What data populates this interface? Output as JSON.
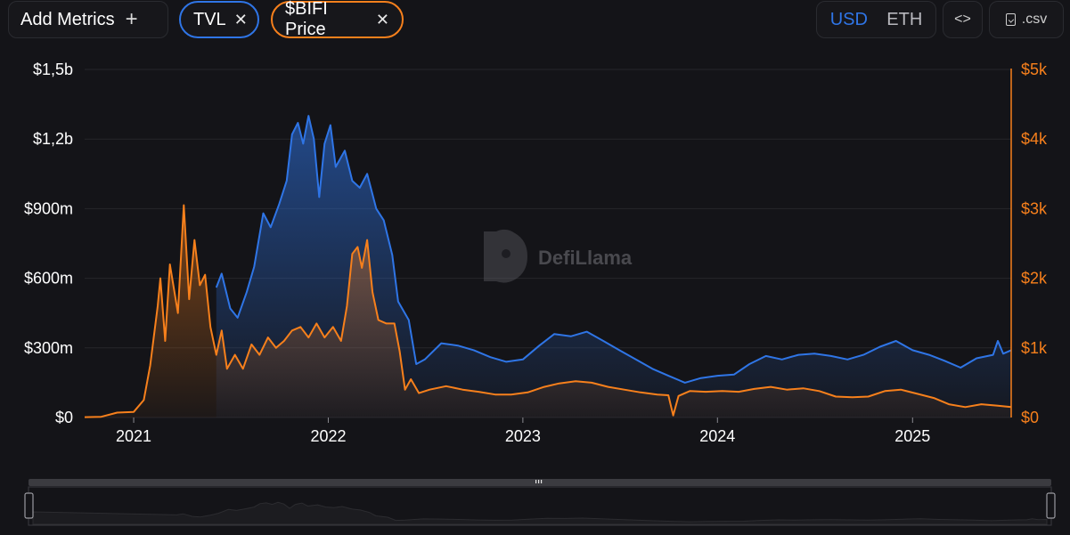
{
  "header": {
    "add_metrics_label": "Add Metrics",
    "add_icon": "plus-icon",
    "pills": [
      {
        "label": "TVL",
        "color": "#2f75e6",
        "close_icon": "close-icon"
      },
      {
        "label": "$BIFI Price",
        "color": "#f7801c",
        "close_icon": "close-icon"
      }
    ],
    "currency_options": [
      "USD",
      "ETH"
    ],
    "selected_currency": "USD",
    "embed_icon": "code-icon",
    "csv_label": ".csv",
    "csv_icon": "file-download-icon"
  },
  "watermark": {
    "text": "DefiLlama",
    "icon": "llama-logo-icon"
  },
  "chart_data": {
    "type": "line",
    "x_ticks": [
      "2021",
      "2022",
      "2023",
      "2024",
      "2025"
    ],
    "left_axis": {
      "ticks": [
        "$0",
        "$300m",
        "$600m",
        "$900m",
        "$1,2b",
        "$1,5b"
      ],
      "range": [
        0,
        1500000000
      ]
    },
    "right_axis": {
      "ticks": [
        "$0",
        "$1k",
        "$2k",
        "$3k",
        "$4k",
        "$5k"
      ],
      "range": [
        0,
        5000
      ]
    },
    "grid": true,
    "series": [
      {
        "name": "TVL",
        "axis": "left",
        "color": "#2f75e6",
        "area": true,
        "points": [
          [
            "2021-06-05",
            560000000
          ],
          [
            "2021-06-15",
            620000000
          ],
          [
            "2021-07-01",
            470000000
          ],
          [
            "2021-07-15",
            430000000
          ],
          [
            "2021-08-01",
            540000000
          ],
          [
            "2021-08-15",
            650000000
          ],
          [
            "2021-09-01",
            880000000
          ],
          [
            "2021-09-15",
            820000000
          ],
          [
            "2021-10-01",
            920000000
          ],
          [
            "2021-10-15",
            1020000000
          ],
          [
            "2021-10-25",
            1220000000
          ],
          [
            "2021-11-05",
            1270000000
          ],
          [
            "2021-11-15",
            1180000000
          ],
          [
            "2021-11-25",
            1300000000
          ],
          [
            "2021-12-05",
            1200000000
          ],
          [
            "2021-12-15",
            950000000
          ],
          [
            "2021-12-25",
            1180000000
          ],
          [
            "2022-01-05",
            1260000000
          ],
          [
            "2022-01-15",
            1080000000
          ],
          [
            "2022-02-01",
            1150000000
          ],
          [
            "2022-02-15",
            1020000000
          ],
          [
            "2022-03-01",
            990000000
          ],
          [
            "2022-03-15",
            1050000000
          ],
          [
            "2022-04-01",
            900000000
          ],
          [
            "2022-04-15",
            850000000
          ],
          [
            "2022-05-01",
            700000000
          ],
          [
            "2022-05-12",
            500000000
          ],
          [
            "2022-06-01",
            420000000
          ],
          [
            "2022-06-15",
            230000000
          ],
          [
            "2022-07-01",
            250000000
          ],
          [
            "2022-08-01",
            320000000
          ],
          [
            "2022-09-01",
            310000000
          ],
          [
            "2022-10-01",
            290000000
          ],
          [
            "2022-11-01",
            260000000
          ],
          [
            "2022-12-01",
            240000000
          ],
          [
            "2023-01-01",
            250000000
          ],
          [
            "2023-02-01",
            310000000
          ],
          [
            "2023-03-01",
            360000000
          ],
          [
            "2023-04-01",
            350000000
          ],
          [
            "2023-05-01",
            370000000
          ],
          [
            "2023-06-01",
            330000000
          ],
          [
            "2023-07-01",
            290000000
          ],
          [
            "2023-08-01",
            250000000
          ],
          [
            "2023-09-01",
            210000000
          ],
          [
            "2023-10-01",
            180000000
          ],
          [
            "2023-11-01",
            150000000
          ],
          [
            "2023-12-01",
            170000000
          ],
          [
            "2024-01-01",
            180000000
          ],
          [
            "2024-02-01",
            185000000
          ],
          [
            "2024-03-01",
            230000000
          ],
          [
            "2024-04-01",
            265000000
          ],
          [
            "2024-05-01",
            250000000
          ],
          [
            "2024-06-01",
            270000000
          ],
          [
            "2024-07-01",
            275000000
          ],
          [
            "2024-08-01",
            265000000
          ],
          [
            "2024-09-01",
            250000000
          ],
          [
            "2024-10-01",
            270000000
          ],
          [
            "2024-11-01",
            305000000
          ],
          [
            "2024-12-01",
            330000000
          ],
          [
            "2025-01-01",
            290000000
          ],
          [
            "2025-02-01",
            270000000
          ],
          [
            "2025-03-01",
            245000000
          ],
          [
            "2025-04-01",
            215000000
          ],
          [
            "2025-05-01",
            255000000
          ],
          [
            "2025-06-01",
            270000000
          ],
          [
            "2025-06-10",
            330000000
          ],
          [
            "2025-06-20",
            275000000
          ],
          [
            "2025-07-05",
            290000000
          ]
        ]
      },
      {
        "name": "$BIFI Price",
        "axis": "right",
        "color": "#f7801c",
        "area": true,
        "points": [
          [
            "2020-10-01",
            5
          ],
          [
            "2020-11-01",
            10
          ],
          [
            "2020-12-01",
            70
          ],
          [
            "2021-01-01",
            80
          ],
          [
            "2021-01-20",
            250
          ],
          [
            "2021-02-01",
            750
          ],
          [
            "2021-02-15",
            1600
          ],
          [
            "2021-02-20",
            2000
          ],
          [
            "2021-03-01",
            1100
          ],
          [
            "2021-03-10",
            2200
          ],
          [
            "2021-03-25",
            1500
          ],
          [
            "2021-04-05",
            3050
          ],
          [
            "2021-04-15",
            1700
          ],
          [
            "2021-04-25",
            2550
          ],
          [
            "2021-05-05",
            1900
          ],
          [
            "2021-05-15",
            2050
          ],
          [
            "2021-05-25",
            1300
          ],
          [
            "2021-06-05",
            900
          ],
          [
            "2021-06-15",
            1250
          ],
          [
            "2021-06-25",
            700
          ],
          [
            "2021-07-10",
            900
          ],
          [
            "2021-07-25",
            700
          ],
          [
            "2021-08-10",
            1050
          ],
          [
            "2021-08-25",
            900
          ],
          [
            "2021-09-10",
            1150
          ],
          [
            "2021-09-25",
            1000
          ],
          [
            "2021-10-10",
            1100
          ],
          [
            "2021-10-25",
            1250
          ],
          [
            "2021-11-10",
            1300
          ],
          [
            "2021-11-25",
            1150
          ],
          [
            "2021-12-10",
            1350
          ],
          [
            "2021-12-25",
            1150
          ],
          [
            "2022-01-10",
            1300
          ],
          [
            "2022-01-25",
            1100
          ],
          [
            "2022-02-05",
            1600
          ],
          [
            "2022-02-15",
            2350
          ],
          [
            "2022-02-25",
            2450
          ],
          [
            "2022-03-05",
            2150
          ],
          [
            "2022-03-15",
            2550
          ],
          [
            "2022-03-25",
            1800
          ],
          [
            "2022-04-05",
            1400
          ],
          [
            "2022-04-20",
            1350
          ],
          [
            "2022-05-05",
            1350
          ],
          [
            "2022-05-15",
            950
          ],
          [
            "2022-05-25",
            400
          ],
          [
            "2022-06-05",
            550
          ],
          [
            "2022-06-20",
            350
          ],
          [
            "2022-07-10",
            400
          ],
          [
            "2022-08-10",
            450
          ],
          [
            "2022-09-10",
            400
          ],
          [
            "2022-10-10",
            370
          ],
          [
            "2022-11-10",
            330
          ],
          [
            "2022-12-10",
            330
          ],
          [
            "2023-01-10",
            360
          ],
          [
            "2023-02-10",
            440
          ],
          [
            "2023-03-10",
            490
          ],
          [
            "2023-04-10",
            520
          ],
          [
            "2023-05-10",
            500
          ],
          [
            "2023-06-10",
            440
          ],
          [
            "2023-07-10",
            400
          ],
          [
            "2023-08-10",
            360
          ],
          [
            "2023-09-10",
            330
          ],
          [
            "2023-10-01",
            320
          ],
          [
            "2023-10-10",
            30
          ],
          [
            "2023-10-20",
            310
          ],
          [
            "2023-11-10",
            380
          ],
          [
            "2023-12-10",
            370
          ],
          [
            "2024-01-10",
            380
          ],
          [
            "2024-02-10",
            370
          ],
          [
            "2024-03-10",
            410
          ],
          [
            "2024-04-10",
            440
          ],
          [
            "2024-05-10",
            400
          ],
          [
            "2024-06-10",
            420
          ],
          [
            "2024-07-10",
            380
          ],
          [
            "2024-08-10",
            300
          ],
          [
            "2024-09-10",
            290
          ],
          [
            "2024-10-10",
            300
          ],
          [
            "2024-11-10",
            380
          ],
          [
            "2024-12-10",
            400
          ],
          [
            "2025-01-10",
            340
          ],
          [
            "2025-02-10",
            280
          ],
          [
            "2025-03-10",
            190
          ],
          [
            "2025-04-10",
            150
          ],
          [
            "2025-05-10",
            190
          ],
          [
            "2025-06-10",
            170
          ],
          [
            "2025-07-05",
            150
          ]
        ]
      }
    ]
  }
}
